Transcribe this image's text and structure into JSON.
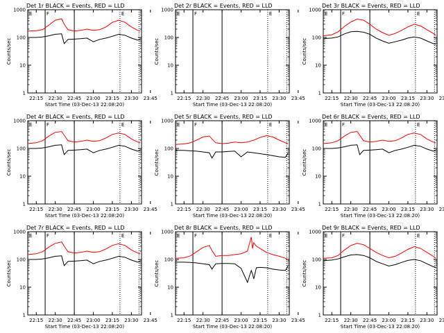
{
  "colors": {
    "events": "#000000",
    "lld": "#ff0000",
    "axis": "#000000",
    "background": "#ffffff"
  },
  "x_tick_labels": [
    "22:15",
    "22:30",
    "22:45",
    "23:00",
    "23:15",
    "23:30",
    "23:45"
  ],
  "y_tick_labels": [
    "1",
    "10",
    "100",
    "1000"
  ],
  "x_axis_label": "Start Time (03-Dec-13 22:08:20)",
  "y_axis_label": "Counts/sec",
  "marker_labels": [
    "E",
    "F",
    "E"
  ],
  "chart_data": [
    {
      "type": "line",
      "title": "Det 1r BLACK = Events, RED = LLD",
      "x": [
        8.3,
        15,
        20,
        25,
        30,
        35,
        37,
        40,
        45,
        50,
        55,
        60,
        65,
        70,
        75,
        80,
        85,
        90,
        95,
        97
      ],
      "series": [
        {
          "name": "Events",
          "color": "#000000",
          "values": [
            100,
            100,
            104,
            115,
            130,
            135,
            60,
            85,
            87,
            90,
            95,
            70,
            85,
            95,
            110,
            130,
            120,
            95,
            80,
            85
          ]
        },
        {
          "name": "LLD",
          "color": "#ff0000",
          "values": [
            170,
            175,
            190,
            280,
            420,
            470,
            300,
            190,
            170,
            180,
            200,
            180,
            190,
            240,
            350,
            420,
            350,
            240,
            180,
            170
          ]
        }
      ],
      "markers_solid": [
        22,
        45
      ],
      "markers_dotted": [
        81,
        96
      ],
      "ylim": [
        1,
        1000
      ],
      "yscale": "log",
      "xlim": [
        8.3,
        98
      ]
    },
    {
      "type": "line",
      "title": "Det 2r BLACK = Events, RED = LLD",
      "x": [],
      "series": [],
      "markers_solid": [
        22,
        45
      ],
      "markers_dotted": [
        81,
        96
      ],
      "ylim": [
        1,
        1000
      ],
      "yscale": "log",
      "xlim": [
        8.3,
        98
      ]
    },
    {
      "type": "line",
      "title": "Det 3r BLACK = Events, RED = LLD",
      "x": [
        8.3,
        15,
        20,
        25,
        30,
        35,
        40,
        45,
        50,
        55,
        60,
        65,
        70,
        75,
        80,
        85,
        90,
        95,
        97
      ],
      "series": [
        {
          "name": "Events",
          "color": "#000000",
          "values": [
            90,
            95,
            105,
            135,
            160,
            165,
            155,
            130,
            95,
            75,
            62,
            70,
            80,
            95,
            105,
            95,
            75,
            60,
            58
          ]
        },
        {
          "name": "LLD",
          "color": "#ff0000",
          "values": [
            115,
            125,
            160,
            250,
            360,
            460,
            420,
            300,
            200,
            150,
            120,
            140,
            180,
            240,
            300,
            260,
            190,
            140,
            120
          ]
        }
      ],
      "markers_solid": [
        22,
        45
      ],
      "markers_dotted": [
        81,
        96
      ],
      "ylim": [
        1,
        1000
      ],
      "yscale": "log",
      "xlim": [
        8.3,
        98
      ]
    },
    {
      "type": "line",
      "title": "Det 4r BLACK = Events, RED = LLD",
      "x": [
        8.3,
        15,
        20,
        25,
        30,
        35,
        37,
        40,
        45,
        50,
        55,
        60,
        65,
        70,
        75,
        80,
        85,
        90,
        95,
        97
      ],
      "series": [
        {
          "name": "Events",
          "color": "#000000",
          "values": [
            100,
            100,
            104,
            115,
            130,
            135,
            60,
            85,
            87,
            90,
            95,
            70,
            85,
            95,
            110,
            130,
            120,
            95,
            80,
            85
          ]
        },
        {
          "name": "LLD",
          "color": "#ff0000",
          "values": [
            150,
            160,
            190,
            280,
            380,
            410,
            300,
            190,
            170,
            180,
            200,
            180,
            190,
            240,
            320,
            360,
            320,
            220,
            170,
            160
          ]
        }
      ],
      "markers_solid": [
        22,
        45
      ],
      "markers_dotted": [
        81,
        96
      ],
      "ylim": [
        1,
        1000
      ],
      "yscale": "log",
      "xlim": [
        8.3,
        98
      ]
    },
    {
      "type": "line",
      "title": "Det 5r BLACK = Events, RED = LLD",
      "x": [
        8.3,
        15,
        20,
        25,
        30,
        35,
        37,
        40,
        45,
        50,
        55,
        60,
        65,
        70,
        75,
        80,
        85,
        90,
        95,
        97
      ],
      "series": [
        {
          "name": "Events",
          "color": "#000000",
          "values": [
            85,
            85,
            82,
            80,
            75,
            70,
            45,
            75,
            75,
            78,
            80,
            50,
            75,
            70,
            65,
            60,
            55,
            50,
            48,
            70
          ]
        },
        {
          "name": "LLD",
          "color": "#ff0000",
          "values": [
            140,
            145,
            160,
            200,
            260,
            280,
            220,
            160,
            150,
            155,
            170,
            160,
            170,
            200,
            250,
            290,
            260,
            200,
            160,
            150
          ]
        }
      ],
      "markers_solid": [
        22,
        45
      ],
      "markers_dotted": [
        81,
        96
      ],
      "ylim": [
        1,
        1000
      ],
      "yscale": "log",
      "xlim": [
        8.3,
        98
      ]
    },
    {
      "type": "line",
      "title": "Det 6r BLACK = Events, RED = LLD",
      "x": [
        8.3,
        15,
        20,
        25,
        30,
        35,
        37,
        40,
        45,
        50,
        55,
        60,
        65,
        70,
        75,
        80,
        85,
        90,
        95,
        97
      ],
      "series": [
        {
          "name": "Events",
          "color": "#000000",
          "values": [
            100,
            100,
            104,
            115,
            130,
            135,
            60,
            85,
            87,
            90,
            95,
            70,
            85,
            95,
            110,
            130,
            120,
            95,
            80,
            85
          ]
        },
        {
          "name": "LLD",
          "color": "#ff0000",
          "values": [
            150,
            160,
            190,
            280,
            380,
            410,
            300,
            190,
            170,
            180,
            200,
            180,
            190,
            240,
            320,
            360,
            320,
            220,
            170,
            160
          ]
        }
      ],
      "markers_solid": [
        22,
        45
      ],
      "markers_dotted": [
        81,
        96
      ],
      "ylim": [
        1,
        1000
      ],
      "yscale": "log",
      "xlim": [
        8.3,
        98
      ]
    },
    {
      "type": "line",
      "title": "Det 7r BLACK = Events, RED = LLD",
      "x": [
        8.3,
        15,
        20,
        25,
        30,
        35,
        37,
        40,
        45,
        50,
        55,
        60,
        65,
        70,
        75,
        80,
        85,
        90,
        95,
        97
      ],
      "series": [
        {
          "name": "Events",
          "color": "#000000",
          "values": [
            100,
            100,
            104,
            115,
            130,
            135,
            60,
            85,
            87,
            90,
            95,
            70,
            85,
            95,
            110,
            130,
            120,
            95,
            80,
            85
          ]
        },
        {
          "name": "LLD",
          "color": "#ff0000",
          "values": [
            150,
            160,
            190,
            280,
            380,
            430,
            300,
            190,
            170,
            180,
            200,
            180,
            190,
            240,
            320,
            370,
            320,
            220,
            170,
            160
          ]
        }
      ],
      "markers_solid": [
        22,
        45
      ],
      "markers_dotted": [
        81,
        96
      ],
      "ylim": [
        1,
        1000
      ],
      "yscale": "log",
      "xlim": [
        8.3,
        98
      ]
    },
    {
      "type": "line",
      "title": "Det 8r BLACK = Events, RED = LLD",
      "x": [
        8.3,
        15,
        20,
        25,
        30,
        35,
        37,
        40,
        45,
        50,
        55,
        60,
        65,
        68,
        69,
        70,
        72,
        75,
        80,
        85,
        90,
        95,
        97
      ],
      "series": [
        {
          "name": "Events",
          "color": "#000000",
          "values": [
            80,
            80,
            78,
            75,
            70,
            65,
            45,
            70,
            72,
            72,
            70,
            48,
            15,
            40,
            30,
            20,
            50,
            52,
            50,
            45,
            42,
            40,
            60
          ]
        },
        {
          "name": "LLD",
          "color": "#ff0000",
          "values": [
            110,
            115,
            135,
            190,
            270,
            320,
            210,
            130,
            140,
            140,
            150,
            160,
            200,
            650,
            250,
            400,
            300,
            250,
            180,
            150,
            130,
            110,
            100
          ]
        }
      ],
      "markers_solid": [
        22,
        45
      ],
      "markers_dotted": [
        81,
        96
      ],
      "ylim": [
        1,
        1000
      ],
      "yscale": "log",
      "xlim": [
        8.3,
        98
      ]
    },
    {
      "type": "line",
      "title": "Det 9r BLACK = Events, RED = LLD",
      "x": [
        8.3,
        15,
        20,
        25,
        30,
        35,
        40,
        45,
        50,
        55,
        60,
        65,
        70,
        75,
        80,
        85,
        90,
        95,
        97
      ],
      "series": [
        {
          "name": "Events",
          "color": "#000000",
          "values": [
            90,
            95,
            105,
            125,
            145,
            150,
            140,
            115,
            85,
            70,
            58,
            65,
            78,
            92,
            100,
            90,
            70,
            55,
            52
          ]
        },
        {
          "name": "LLD",
          "color": "#ff0000",
          "values": [
            110,
            115,
            140,
            220,
            320,
            380,
            340,
            250,
            180,
            140,
            115,
            130,
            170,
            230,
            290,
            250,
            180,
            130,
            110
          ]
        }
      ],
      "markers_solid": [
        22,
        45
      ],
      "markers_dotted": [
        81,
        96
      ],
      "ylim": [
        1,
        1000
      ],
      "yscale": "log",
      "xlim": [
        8.3,
        98
      ]
    }
  ]
}
